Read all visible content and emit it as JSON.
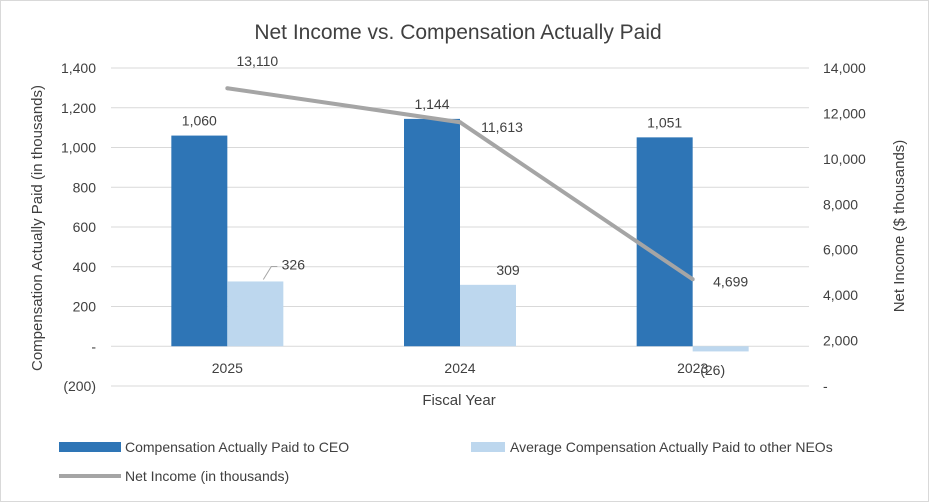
{
  "chart_data": {
    "type": "bar",
    "title": "Net Income vs. Compensation Actually Paid",
    "xlabel": "Fiscal Year",
    "ylabel": "Compensation Actually Paid (in thousands)",
    "y2label": "Net Income ($ thousands)",
    "categories": [
      "2025",
      "2024",
      "2023"
    ],
    "ylim": [
      -200,
      1400
    ],
    "yticks": [
      -200,
      0,
      200,
      400,
      600,
      800,
      1000,
      1200,
      1400
    ],
    "ytick_labels": [
      "(200)",
      "-",
      "200",
      "400",
      "600",
      "800",
      "1,000",
      "1,200",
      "1,400"
    ],
    "y2lim": [
      0,
      14000
    ],
    "y2ticks": [
      0,
      2000,
      4000,
      6000,
      8000,
      10000,
      12000,
      14000
    ],
    "y2tick_labels": [
      "-",
      "2,000",
      "4,000",
      "6,000",
      "8,000",
      "10,000",
      "12,000",
      "14,000"
    ],
    "series": [
      {
        "name": "Compensation Actually Paid to CEO",
        "type": "bar",
        "axis": "left",
        "color": "#2e75b6",
        "values": [
          1060,
          1144,
          1051
        ],
        "labels": [
          "1,060",
          "1,144",
          "1,051"
        ]
      },
      {
        "name": "Average  Compensation Actually Paid to other NEOs",
        "type": "bar",
        "axis": "left",
        "color": "#bdd7ee",
        "values": [
          326,
          309,
          -26
        ],
        "labels": [
          "326",
          "309",
          "(26)"
        ]
      },
      {
        "name": "Net Income (in thousands)",
        "type": "line",
        "axis": "right",
        "color": "#a5a5a5",
        "values": [
          13110,
          11613,
          4699
        ],
        "labels": [
          "13,110",
          "11,613",
          "4,699"
        ]
      }
    ],
    "legend_position": "bottom",
    "grid": true
  }
}
